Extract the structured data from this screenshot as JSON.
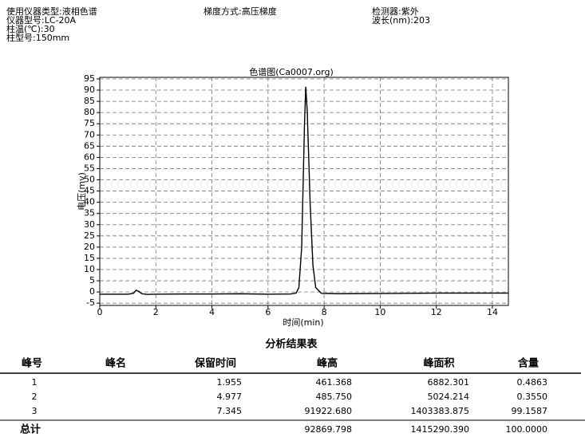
{
  "header": [
    [
      "使用仪器类型:液相色谱",
      "仪器型号:LC-20A",
      "柱温(℃):30",
      "柱型号:150mm"
    ],
    [
      "梯度方式:高压梯度"
    ],
    [
      "检测器:紫外",
      "波长(nm):203"
    ]
  ],
  "chart_data": {
    "type": "line",
    "title": "色谱图(Ca0007.org)",
    "x_label": "时间(min)",
    "y_label": "电压(mv)",
    "x": [
      0,
      1.0,
      1.2,
      1.3,
      1.4,
      1.5,
      1.7,
      2.0,
      3,
      4,
      5,
      6,
      6.8,
      7.0,
      7.1,
      7.2,
      7.3,
      7.345,
      7.4,
      7.5,
      7.6,
      7.7,
      7.9,
      8.5,
      10,
      11,
      12,
      13,
      14,
      14.57
    ],
    "series": [
      {
        "color": "#000000",
        "values": [
          -1,
          -1,
          -0.6,
          0.8,
          0.2,
          -0.8,
          -1.1,
          -1.0,
          -0.9,
          -0.9,
          -0.8,
          -1.0,
          -0.9,
          -0.5,
          2,
          20,
          75,
          91.5,
          80,
          40,
          12,
          2,
          -0.6,
          -0.8,
          -0.7,
          -0.6,
          -0.5,
          -0.5,
          -0.5,
          -0.5
        ]
      }
    ],
    "xlim": [
      0,
      14.57
    ],
    "ylim": [
      -6,
      95.7
    ],
    "xticks": [
      0,
      2,
      4,
      6,
      8,
      10,
      12,
      14
    ],
    "yticks": [
      -5,
      0,
      5,
      10,
      15,
      20,
      25,
      30,
      35,
      40,
      45,
      50,
      55,
      60,
      65,
      70,
      75,
      80,
      85,
      90,
      95
    ],
    "grid": true
  },
  "table": {
    "title": "分析结果表",
    "columns": [
      "峰号",
      "峰名",
      "保留时间",
      "峰高",
      "峰面积",
      "含量"
    ],
    "rows": [
      [
        "1",
        null,
        "1.955",
        "461.368",
        "6882.301",
        "0.4863"
      ],
      [
        "2",
        null,
        "4.977",
        "485.750",
        "5024.214",
        "0.3550"
      ],
      [
        "3",
        null,
        "7.345",
        "91922.680",
        "1403383.875",
        "99.1587"
      ]
    ],
    "total": [
      "总计",
      null,
      null,
      "92869.798",
      "1415290.390",
      "100.0000"
    ]
  }
}
